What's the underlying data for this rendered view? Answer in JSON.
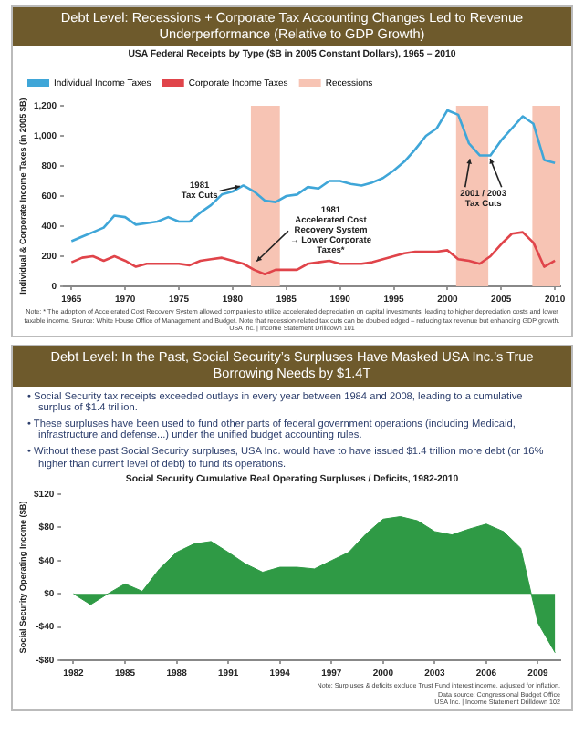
{
  "chart_data": [
    {
      "type": "line",
      "title": "Debt Level: Recessions + Corporate Tax Accounting Changes Led to Revenue Underperformance (Relative to GDP Growth)",
      "subtitle": "USA Federal Receipts by Type ($B in 2005 Constant Dollars), 1965 – 2010",
      "ylabel": "Individual & Corporate Income Taxes (in 2005 $B)",
      "x": [
        1965,
        1966,
        1967,
        1968,
        1969,
        1970,
        1971,
        1972,
        1973,
        1974,
        1975,
        1976,
        1977,
        1978,
        1979,
        1980,
        1981,
        1982,
        1983,
        1984,
        1985,
        1986,
        1987,
        1988,
        1989,
        1990,
        1991,
        1992,
        1993,
        1994,
        1995,
        1996,
        1997,
        1998,
        1999,
        2000,
        2001,
        2002,
        2003,
        2004,
        2005,
        2006,
        2007,
        2008,
        2009,
        2010
      ],
      "series": [
        {
          "name": "Individual Income Taxes",
          "color": "#3fa6d8",
          "values": [
            300,
            330,
            360,
            390,
            470,
            460,
            410,
            420,
            430,
            460,
            430,
            430,
            490,
            540,
            610,
            630,
            670,
            630,
            570,
            560,
            600,
            610,
            660,
            650,
            700,
            700,
            680,
            670,
            690,
            720,
            770,
            830,
            910,
            1000,
            1050,
            1170,
            1140,
            950,
            870,
            870,
            970,
            1050,
            1130,
            1080,
            840,
            820
          ]
        },
        {
          "name": "Corporate Income Taxes",
          "color": "#e0444a",
          "values": [
            160,
            190,
            200,
            170,
            200,
            170,
            130,
            150,
            150,
            150,
            150,
            140,
            170,
            180,
            190,
            170,
            150,
            110,
            80,
            110,
            110,
            110,
            150,
            160,
            170,
            150,
            150,
            150,
            160,
            180,
            200,
            220,
            230,
            230,
            230,
            240,
            180,
            170,
            150,
            200,
            280,
            350,
            360,
            290,
            130,
            170
          ]
        }
      ],
      "bands": [
        {
          "axis": "x",
          "from": 1981.7,
          "to": 1984.4,
          "label": "Recessions",
          "color": "#f7c4b4"
        },
        {
          "axis": "x",
          "from": 2000.8,
          "to": 2003.8,
          "color": "#f7c4b4"
        },
        {
          "axis": "x",
          "from": 2007.9,
          "to": 2010.5,
          "color": "#f7c4b4"
        }
      ],
      "xlim": [
        1964.3,
        2010.5
      ],
      "xticks": [
        1965,
        1970,
        1975,
        1980,
        1985,
        1990,
        1995,
        2000,
        2005,
        2010
      ],
      "ylim": [
        0,
        1200
      ],
      "yticks": [
        0,
        200,
        400,
        600,
        800,
        {
          "value": 1000,
          "label": "1,000"
        },
        {
          "value": 1200,
          "label": "1,200"
        }
      ],
      "legend": "top left",
      "annotations": [
        {
          "text": "1981\nTax Cuts",
          "x": 1981,
          "y": 670
        },
        {
          "text": "2001 / 2003\nTax Cuts",
          "x": 2003,
          "y": 870
        },
        {
          "text": "1981\nAccelerated Cost\nRecovery System\n→ Lower Corporate\nTaxes*",
          "x": 1982,
          "y": 150
        },
        "Note: * The adoption of Accelerated Cost Recovery System allowed companies to utilize accelerated depreciation on capital investments, leading to higher depreciation costs and lower taxable income. Source: White House Office of Management and Budget. Note that recession-related tax cuts can be doubled edged – reducing tax revenue but enhancing GDP growth.",
        "USA Inc. | Income Statement Drilldown 101"
      ]
    },
    {
      "type": "area",
      "title": "Debt Level: In the Past, Social Security’s Surpluses Have Masked USA Inc.’s True Borrowing Needs by $1.4T",
      "subtitle": "Social Security Cumulative Real Operating Surpluses / Deficits, 1982-2010",
      "ylabel": "Social Security Operating Income ($B)",
      "x": [
        1982,
        1983,
        1984,
        1985,
        1986,
        1987,
        1988,
        1989,
        1990,
        1991,
        1992,
        1993,
        1994,
        1995,
        1996,
        1997,
        1998,
        1999,
        2000,
        2001,
        2002,
        2003,
        2004,
        2005,
        2006,
        2007,
        2008,
        2009,
        2010
      ],
      "series": [
        {
          "color": "#2f9a45",
          "values": [
            0,
            -13,
            0,
            12,
            3,
            30,
            50,
            60,
            63,
            50,
            36,
            26,
            32,
            32,
            30,
            40,
            50,
            72,
            90,
            93,
            88,
            75,
            71,
            78,
            84,
            75,
            55,
            -35,
            -71
          ]
        }
      ],
      "xlim": [
        1981.3,
        2010.3
      ],
      "xticks": [
        1982,
        1985,
        1988,
        1991,
        1994,
        1997,
        2000,
        2003,
        2006,
        2009
      ],
      "ylim": [
        -80,
        120
      ],
      "yticks": [
        {
          "value": -80,
          "label": "-$80"
        },
        {
          "value": -40,
          "label": "-$40"
        },
        {
          "value": 0,
          "label": "$0"
        },
        {
          "value": 40,
          "label": "$40"
        },
        {
          "value": 80,
          "label": "$80"
        },
        {
          "value": 120,
          "label": "$120"
        }
      ],
      "annotations": [
        "• Social Security tax receipts exceeded outlays in every year between 1984 and 2008, leading to a cumulative surplus of $1.4 trillion.",
        "• These surpluses have been used to fund other parts of federal government operations (including Medicaid, infrastructure and defense...) under the unified budget accounting rules.",
        "• Without these past Social Security surpluses, USA Inc. would have to have issued $1.4 trillion more debt (or 16% higher than current level of debt) to fund its operations.",
        "Note: Surpluses & deficits exclude Trust Fund interest income, adjusted for inflation.",
        "Data source: Congressional Budget Office",
        "USA Inc. | Income Statement Drilldown 102"
      ]
    }
  ]
}
